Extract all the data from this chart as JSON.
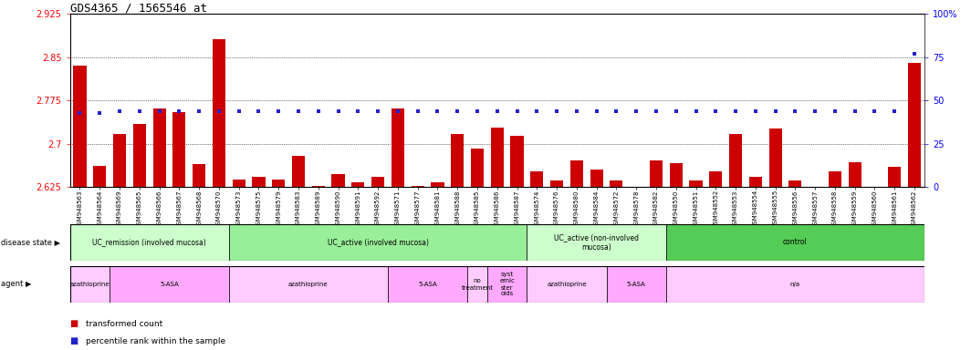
{
  "title": "GDS4365 / 1565546_at",
  "samples": [
    "GSM948563",
    "GSM948564",
    "GSM948569",
    "GSM948565",
    "GSM948566",
    "GSM948567",
    "GSM948568",
    "GSM948570",
    "GSM948573",
    "GSM948575",
    "GSM948579",
    "GSM948583",
    "GSM948589",
    "GSM948590",
    "GSM948591",
    "GSM948592",
    "GSM948571",
    "GSM948577",
    "GSM948581",
    "GSM948588",
    "GSM948585",
    "GSM948586",
    "GSM948587",
    "GSM948574",
    "GSM948576",
    "GSM948580",
    "GSM948584",
    "GSM948572",
    "GSM948578",
    "GSM948582",
    "GSM948550",
    "GSM948551",
    "GSM948552",
    "GSM948553",
    "GSM948554",
    "GSM948555",
    "GSM948556",
    "GSM948557",
    "GSM948558",
    "GSM948559",
    "GSM948560",
    "GSM948561",
    "GSM948562"
  ],
  "bar_values": [
    2.835,
    2.662,
    2.718,
    2.735,
    2.762,
    2.755,
    2.665,
    2.882,
    2.638,
    2.643,
    2.638,
    2.68,
    2.627,
    2.648,
    2.633,
    2.643,
    2.762,
    2.627,
    2.633,
    2.718,
    2.692,
    2.728,
    2.714,
    2.653,
    2.636,
    2.671,
    2.656,
    2.636,
    2.616,
    2.671,
    2.667,
    2.636,
    2.653,
    2.718,
    2.643,
    2.726,
    2.636,
    2.625,
    2.653,
    2.668,
    2.625,
    2.66,
    2.84
  ],
  "percentile_values": [
    43,
    43,
    44,
    44,
    44,
    44,
    44,
    44,
    44,
    44,
    44,
    44,
    44,
    44,
    44,
    44,
    44,
    44,
    44,
    44,
    44,
    44,
    44,
    44,
    44,
    44,
    44,
    44,
    44,
    44,
    44,
    44,
    44,
    44,
    44,
    44,
    44,
    44,
    44,
    44,
    44,
    44,
    77
  ],
  "ymin": 2.625,
  "ymax": 2.925,
  "yticks": [
    2.625,
    2.7,
    2.775,
    2.85,
    2.925
  ],
  "ytick_labels": [
    "2.625",
    "2.7",
    "2.775",
    "2.85",
    "2.925"
  ],
  "right_yticks": [
    0,
    25,
    50,
    75,
    100
  ],
  "right_ytick_labels": [
    "0",
    "25",
    "50",
    "75",
    "100%"
  ],
  "bar_color": "#cc0000",
  "dot_color": "#2222cc",
  "plot_bg": "#ffffff",
  "disease_groups": [
    {
      "label": "UC_remission (involved mucosa)",
      "start": 0,
      "end": 8,
      "color": "#ccffcc"
    },
    {
      "label": "UC_active (involved mucosa)",
      "start": 8,
      "end": 23,
      "color": "#99ee99"
    },
    {
      "label": "UC_active (non-involved\nmucosa)",
      "start": 23,
      "end": 30,
      "color": "#ccffcc"
    },
    {
      "label": "control",
      "start": 30,
      "end": 43,
      "color": "#55cc55"
    }
  ],
  "agent_groups": [
    {
      "label": "azathioprine",
      "start": 0,
      "end": 2,
      "color": "#ffccff"
    },
    {
      "label": "5-ASA",
      "start": 2,
      "end": 8,
      "color": "#ffaaff"
    },
    {
      "label": "azathioprine",
      "start": 8,
      "end": 16,
      "color": "#ffccff"
    },
    {
      "label": "5-ASA",
      "start": 16,
      "end": 20,
      "color": "#ffaaff"
    },
    {
      "label": "no\ntreatment",
      "start": 20,
      "end": 21,
      "color": "#ffccff"
    },
    {
      "label": "syst\nemic\nster\noids",
      "start": 21,
      "end": 23,
      "color": "#ffaaff"
    },
    {
      "label": "azathioprine",
      "start": 23,
      "end": 27,
      "color": "#ffccff"
    },
    {
      "label": "5-ASA",
      "start": 27,
      "end": 30,
      "color": "#ffaaff"
    },
    {
      "label": "n/a",
      "start": 30,
      "end": 43,
      "color": "#ffccff"
    }
  ]
}
